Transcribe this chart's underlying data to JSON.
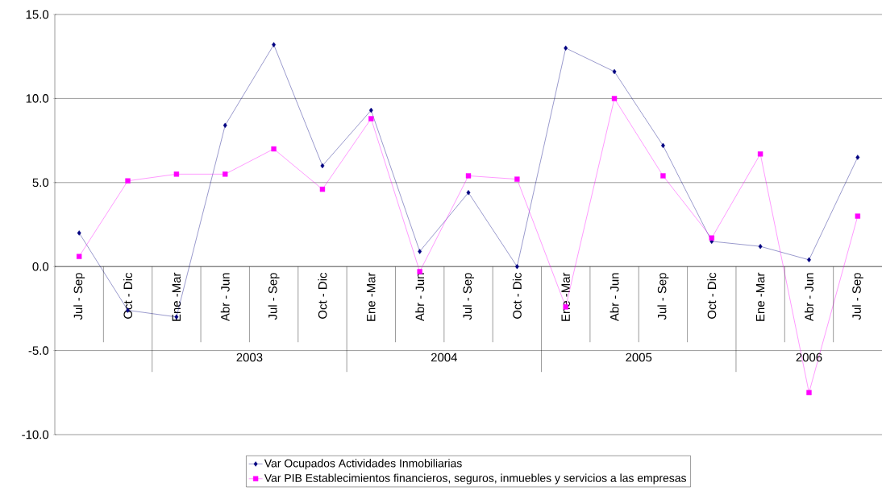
{
  "chart_data": {
    "type": "line",
    "categories": [
      "Jul - Sep",
      "Oct - Dic",
      "Ene -Mar",
      "Abr - Jun",
      "Jul - Sep",
      "Oct - Dic",
      "Ene -Mar",
      "Abr - Jun",
      "Jul - Sep",
      "Oct - Dic",
      "Ene -Mar",
      "Abr - Jun",
      "Jul - Sep",
      "Oct - Dic",
      "Ene -Mar",
      "Abr - Jun",
      "Jul - Sep"
    ],
    "series": [
      {
        "name": "Var Ocupados Actividades Inmobiliarias",
        "color": "#000080",
        "marker": "diamond",
        "values": [
          2.0,
          -2.6,
          -3.0,
          8.4,
          13.2,
          6.0,
          9.3,
          0.9,
          4.4,
          0.0,
          13.0,
          11.6,
          7.2,
          1.5,
          1.2,
          0.4,
          6.5
        ]
      },
      {
        "name": "Var PIB Establecimientos financieros, seguros, inmuebles y servicios a las empresas",
        "color": "#ff00ff",
        "marker": "square",
        "values": [
          0.6,
          5.1,
          5.5,
          5.5,
          7.0,
          4.6,
          8.8,
          -0.3,
          5.4,
          5.2,
          -2.4,
          10.0,
          5.4,
          1.7,
          6.7,
          -7.5,
          3.0
        ]
      }
    ],
    "ylim": [
      -10,
      15
    ],
    "yticks": [
      {
        "value": -10,
        "label": "-10.0"
      },
      {
        "value": -5,
        "label": "-5.0"
      },
      {
        "value": 0,
        "label": "0.0"
      },
      {
        "value": 5,
        "label": "5.0"
      },
      {
        "value": 10,
        "label": "10.0"
      },
      {
        "value": 15,
        "label": "15.0"
      }
    ],
    "grid": "y",
    "legend": "bottom",
    "line_style": "solid",
    "annotations": [
      "2003",
      "2004",
      "2005",
      "2006"
    ]
  }
}
